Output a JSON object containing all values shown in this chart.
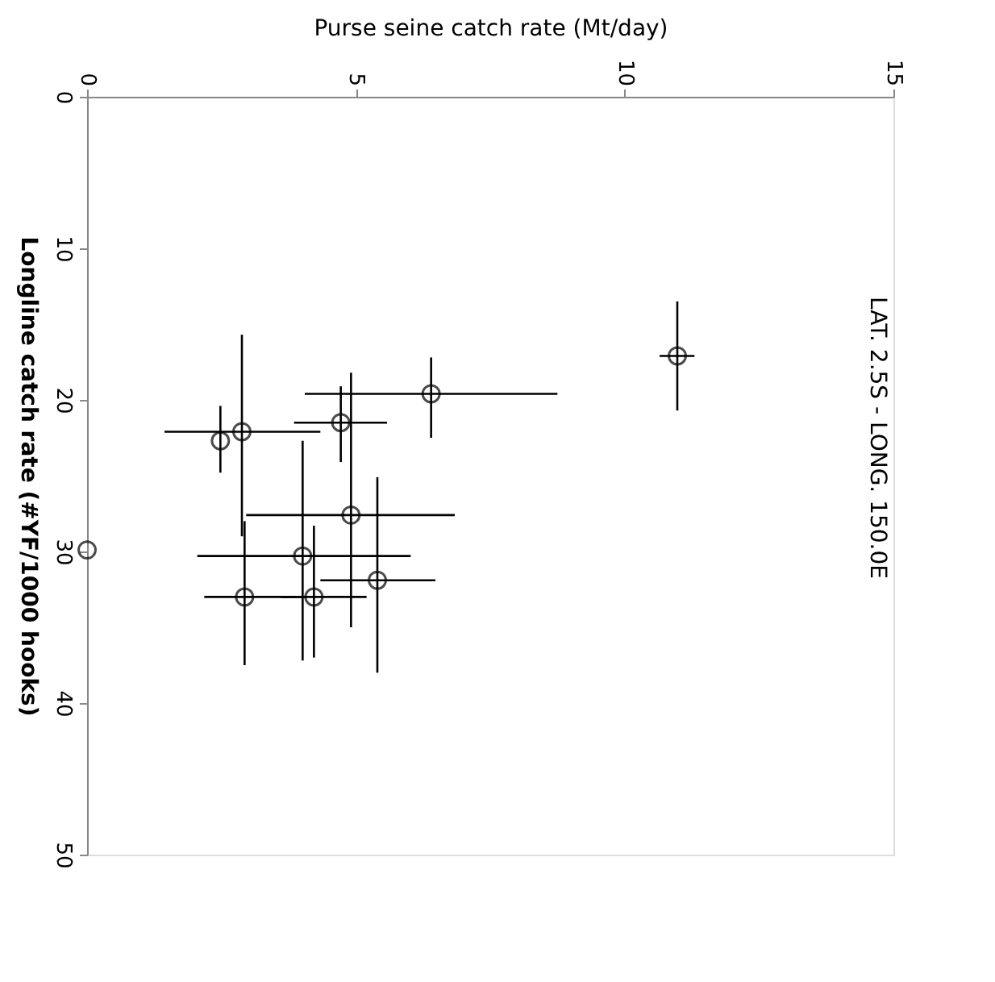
{
  "chart_data": {
    "type": "scatter",
    "xlabel": "Purse seine catch rate (Mt/day)",
    "ylabel": "Longline catch rate (#YF/1000 hooks)",
    "annotations": [
      "LAT. 2.5S - LONG. 150.0E"
    ],
    "x": [
      6.4,
      10.98,
      2.48,
      2.88,
      4.72,
      4.91,
      4.01,
      5.4,
      4.22,
      2.93,
      0
    ],
    "series": [
      {
        "color": "#000000",
        "values": [
          19.6,
          17.1,
          22.7,
          22.1,
          21.5,
          27.6,
          30.3,
          31.9,
          33.0,
          33.0,
          29.9
        ],
        "errors": [
          [
            17.2,
            22.5
          ],
          [
            13.5,
            20.7
          ],
          [
            20.4,
            24.8
          ],
          [
            15.7,
            29.0
          ],
          [
            19.1,
            24.1
          ],
          [
            18.2,
            35.0
          ],
          [
            22.7,
            37.2
          ],
          [
            25.1,
            38.0
          ],
          [
            28.3,
            37.0
          ],
          [
            28.0,
            37.5
          ],
          null
        ],
        "xerrors": [
          [
            4.05,
            8.75
          ],
          [
            10.65,
            11.3
          ],
          null,
          [
            1.44,
            4.34
          ],
          [
            3.85,
            5.58
          ],
          [
            2.96,
            6.84
          ],
          [
            2.05,
            6.02
          ],
          [
            4.34,
            6.48
          ],
          [
            3.6,
            5.2
          ],
          [
            2.18,
            4.06
          ],
          null
        ]
      }
    ],
    "xlim": [
      0,
      15
    ],
    "xticks": [
      0,
      5,
      10,
      15
    ],
    "ylim": [
      50,
      0
    ],
    "yticks": [
      0,
      10,
      20,
      30,
      40,
      50
    ],
    "grid": false,
    "marker": "circle"
  }
}
